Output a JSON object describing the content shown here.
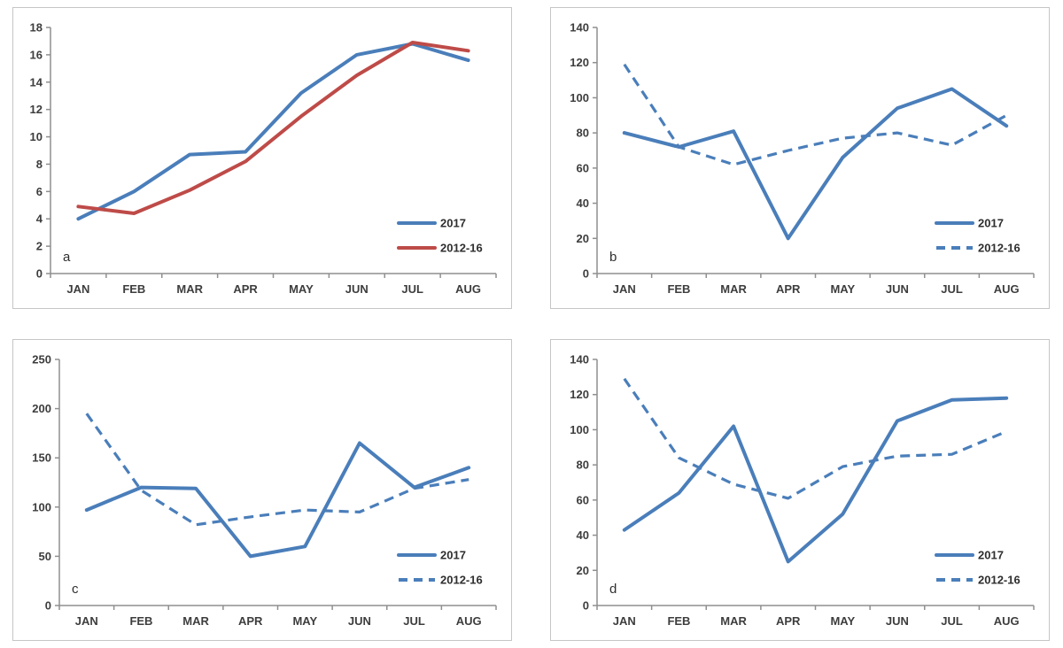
{
  "figure": {
    "description": "Four-panel line chart figure comparing 2017 monthly values with 2012-16 averages",
    "panel_letters": [
      "a",
      "b",
      "c",
      "d"
    ],
    "legend_labels": [
      "2017",
      "2012-16"
    ]
  },
  "colors": {
    "series_blue": "#4a7eba",
    "series_red": "#be4b48",
    "axis_gray": "#8f8f8f",
    "tick_text": "#3d3d3d",
    "panel_border": "#c6c6c6",
    "background": "#ffffff"
  },
  "chart_data": [
    {
      "type": "line",
      "panel_label": "a",
      "categories": [
        "JAN",
        "FEB",
        "MAR",
        "APR",
        "MAY",
        "JUN",
        "JUL",
        "AUG"
      ],
      "ylim": [
        0,
        18
      ],
      "yticks": [
        0,
        2,
        4,
        6,
        8,
        10,
        12,
        14,
        16,
        18
      ],
      "grid": false,
      "legend_position": "bottom-right",
      "series": [
        {
          "name": "2017",
          "color": "#4a7eba",
          "style": "solid",
          "values": [
            4.0,
            6.0,
            8.7,
            8.9,
            13.2,
            16.0,
            16.8,
            15.6
          ]
        },
        {
          "name": "2012-16",
          "color": "#be4b48",
          "style": "solid",
          "values": [
            4.9,
            4.4,
            6.1,
            8.2,
            11.5,
            14.5,
            16.9,
            16.3
          ]
        }
      ]
    },
    {
      "type": "line",
      "panel_label": "b",
      "categories": [
        "JAN",
        "FEB",
        "MAR",
        "APR",
        "MAY",
        "JUN",
        "JUL",
        "AUG"
      ],
      "ylim": [
        0,
        140
      ],
      "yticks": [
        0,
        20,
        40,
        60,
        80,
        100,
        120,
        140
      ],
      "grid": false,
      "legend_position": "bottom-right",
      "series": [
        {
          "name": "2017",
          "color": "#4a7eba",
          "style": "solid",
          "values": [
            80,
            72,
            81,
            20,
            66,
            94,
            105,
            84
          ]
        },
        {
          "name": "2012-16",
          "color": "#4a7eba",
          "style": "dashed",
          "values": [
            119,
            72,
            62,
            70,
            77,
            80,
            73,
            90
          ]
        }
      ]
    },
    {
      "type": "line",
      "panel_label": "c",
      "categories": [
        "JAN",
        "FEB",
        "MAR",
        "APR",
        "MAY",
        "JUN",
        "JUL",
        "AUG"
      ],
      "ylim": [
        0,
        250
      ],
      "yticks": [
        0,
        50,
        100,
        150,
        200,
        250
      ],
      "grid": false,
      "legend_position": "bottom-right",
      "series": [
        {
          "name": "2017",
          "color": "#4a7eba",
          "style": "solid",
          "values": [
            97,
            120,
            119,
            50,
            60,
            165,
            120,
            140
          ]
        },
        {
          "name": "2012-16",
          "color": "#4a7eba",
          "style": "dashed",
          "values": [
            195,
            117,
            82,
            90,
            97,
            95,
            119,
            128
          ]
        }
      ]
    },
    {
      "type": "line",
      "panel_label": "d",
      "categories": [
        "JAN",
        "FEB",
        "MAR",
        "APR",
        "MAY",
        "JUN",
        "JUL",
        "AUG"
      ],
      "ylim": [
        0,
        140
      ],
      "yticks": [
        0,
        20,
        40,
        60,
        80,
        100,
        120,
        140
      ],
      "grid": false,
      "legend_position": "bottom-right",
      "series": [
        {
          "name": "2017",
          "color": "#4a7eba",
          "style": "solid",
          "values": [
            43,
            64,
            102,
            25,
            52,
            105,
            117,
            118
          ]
        },
        {
          "name": "2012-16",
          "color": "#4a7eba",
          "style": "dashed",
          "values": [
            129,
            84,
            69,
            61,
            79,
            85,
            86,
            99
          ]
        }
      ]
    }
  ]
}
